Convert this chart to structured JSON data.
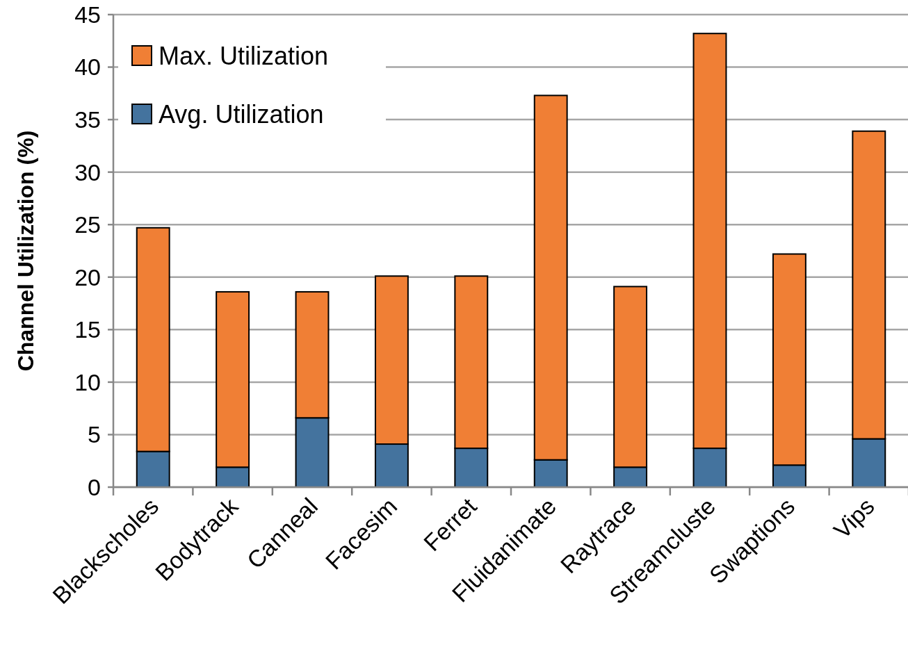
{
  "chart_data": {
    "type": "bar",
    "stacked": true,
    "ylabel": "Channel Utilization (%)",
    "categories": [
      "Blackscholes",
      "Bodytrack",
      "Canneal",
      "Facesim",
      "Ferret",
      "Fluidanimate",
      "Raytrace",
      "Streamcluste",
      "Swaptions",
      "Vips"
    ],
    "series": [
      {
        "name": "Avg. Utilization",
        "color": "#44739e",
        "values": [
          3.4,
          1.9,
          6.6,
          4.1,
          3.7,
          2.6,
          1.9,
          3.7,
          2.1,
          4.6
        ]
      },
      {
        "name": "Max. Utilization",
        "color": "#f07f35",
        "values": [
          21.3,
          16.7,
          12.0,
          16.0,
          16.4,
          34.7,
          17.2,
          39.5,
          20.1,
          29.3
        ]
      }
    ],
    "ylim": [
      0,
      45
    ],
    "yticks": [
      0,
      5,
      10,
      15,
      20,
      25,
      30,
      35,
      40,
      45
    ],
    "grid": "y",
    "legend": "top left"
  }
}
